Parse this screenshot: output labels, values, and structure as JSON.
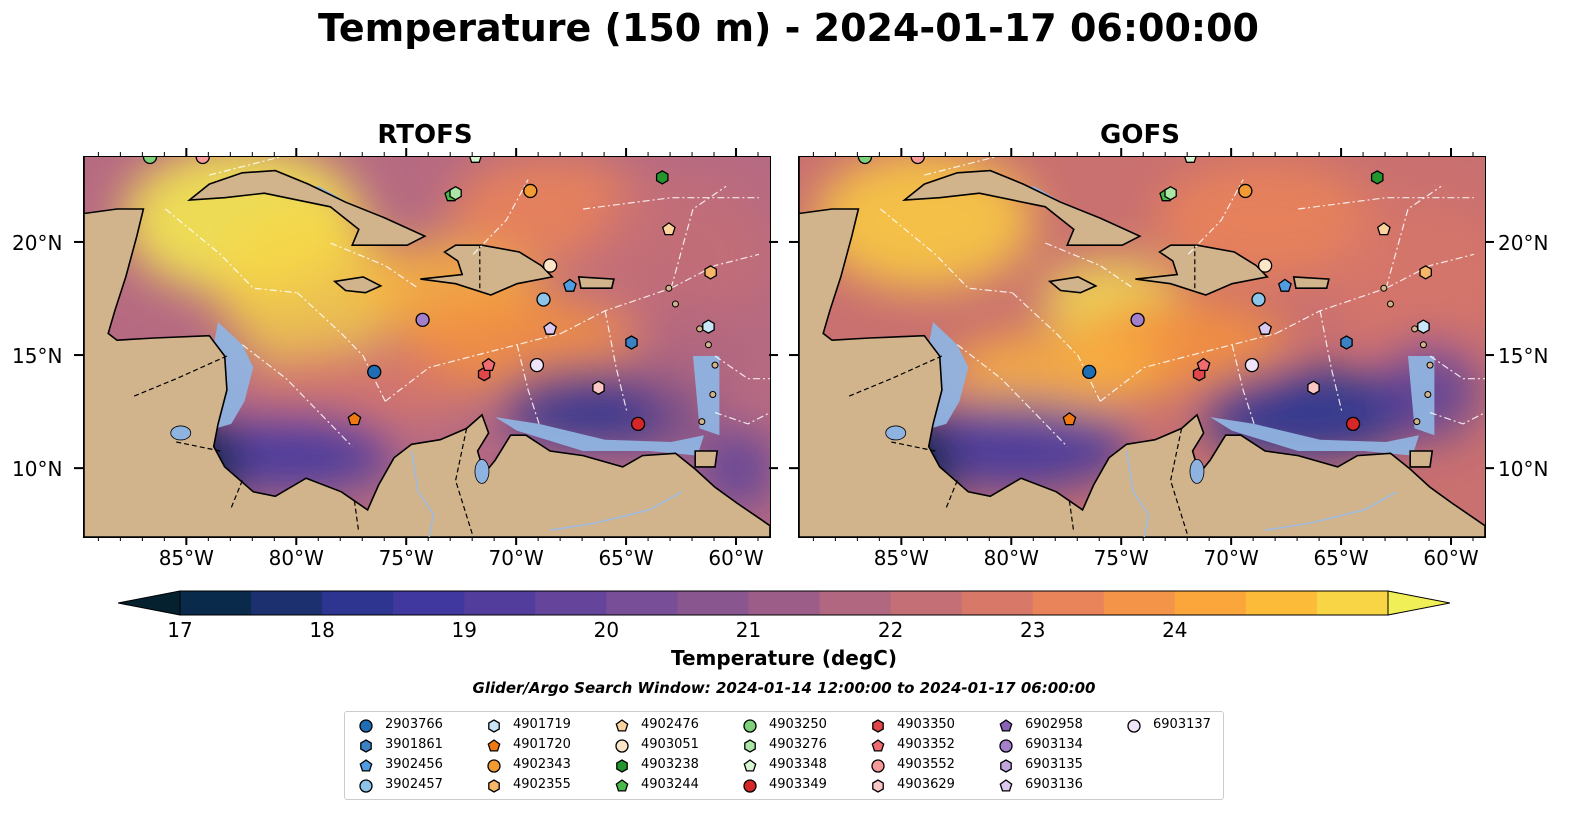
{
  "title": "Temperature (150 m) - 2024-01-17 06:00:00",
  "panels": [
    {
      "title": "RTOFS"
    },
    {
      "title": "GOFS"
    }
  ],
  "axes": {
    "lat_labels": [
      "20°N",
      "15°N",
      "10°N"
    ],
    "lon_labels": [
      "85°W",
      "80°W",
      "75°W",
      "70°W",
      "65°W",
      "60°W"
    ],
    "lat_values": [
      20,
      15,
      10
    ],
    "lon_values": [
      -85,
      -80,
      -75,
      -70,
      -65,
      -60
    ],
    "lon_range": [
      -89.7,
      -58.5
    ],
    "lat_range": [
      7,
      23.8
    ]
  },
  "colorbar": {
    "label": "Temperature (degC)",
    "ticks": [
      "17",
      "18",
      "19",
      "20",
      "21",
      "22",
      "23",
      "24"
    ],
    "range": [
      16.75,
      24.5
    ],
    "colors": [
      "#05202f",
      "#0a2a4c",
      "#1c2f6e",
      "#2d3590",
      "#40389e",
      "#533d9c",
      "#65459b",
      "#774e97",
      "#8a5690",
      "#9c5e88",
      "#b0677f",
      "#c46e75",
      "#d87869",
      "#e9835a",
      "#f49449",
      "#fba63b",
      "#fdbb3a",
      "#f8d545",
      "#f0ef58"
    ]
  },
  "search_window": "Glider/Argo Search Window: 2024-01-14 12:00:00 to 2024-01-17 06:00:00",
  "legend": [
    {
      "id": "2903766",
      "shape": "circle",
      "color": "#1f6db5"
    },
    {
      "id": "3901861",
      "shape": "hexagon",
      "color": "#3b82c4"
    },
    {
      "id": "3902456",
      "shape": "pentagon",
      "color": "#4f9de0"
    },
    {
      "id": "3902457",
      "shape": "circle",
      "color": "#8cc4ea"
    },
    {
      "id": "4901719",
      "shape": "hexagon",
      "color": "#c8e6f7"
    },
    {
      "id": "4901720",
      "shape": "pentagon",
      "color": "#f07a12"
    },
    {
      "id": "4902343",
      "shape": "circle",
      "color": "#f39b33"
    },
    {
      "id": "4902355",
      "shape": "hexagon",
      "color": "#f8b768"
    },
    {
      "id": "4902476",
      "shape": "pentagon",
      "color": "#fcd29e"
    },
    {
      "id": "4903051",
      "shape": "circle",
      "color": "#fde5c8"
    },
    {
      "id": "4903238",
      "shape": "hexagon",
      "color": "#23962e"
    },
    {
      "id": "4903244",
      "shape": "pentagon",
      "color": "#4bb84a"
    },
    {
      "id": "4903250",
      "shape": "circle",
      "color": "#7cd17a"
    },
    {
      "id": "4903276",
      "shape": "hexagon",
      "color": "#abe6a6"
    },
    {
      "id": "4903348",
      "shape": "pentagon",
      "color": "#d8f5d2"
    },
    {
      "id": "4903349",
      "shape": "circle",
      "color": "#d62728"
    },
    {
      "id": "4903350",
      "shape": "hexagon",
      "color": "#e0474a"
    },
    {
      "id": "4903352",
      "shape": "pentagon",
      "color": "#ef6d70"
    },
    {
      "id": "4903552",
      "shape": "circle",
      "color": "#f6999a"
    },
    {
      "id": "4903629",
      "shape": "hexagon",
      "color": "#fbc6c4"
    },
    {
      "id": "6902958",
      "shape": "pentagon",
      "color": "#8a63b8"
    },
    {
      "id": "6903134",
      "shape": "circle",
      "color": "#a47fcb"
    },
    {
      "id": "6903135",
      "shape": "hexagon",
      "color": "#c3a6e0"
    },
    {
      "id": "6903136",
      "shape": "pentagon",
      "color": "#dcc9f0"
    },
    {
      "id": "6903137",
      "shape": "circle",
      "color": "#f0e4fa"
    }
  ],
  "floats": [
    {
      "id": "2903766",
      "lon": -76.5,
      "lat": 14.3
    },
    {
      "id": "3901861",
      "lon": -64.8,
      "lat": 15.6
    },
    {
      "id": "3902456",
      "lon": -67.6,
      "lat": 18.1
    },
    {
      "id": "3902457",
      "lon": -68.8,
      "lat": 17.5
    },
    {
      "id": "4901719",
      "lon": -61.3,
      "lat": 16.3
    },
    {
      "id": "4901720",
      "lon": -77.4,
      "lat": 12.2
    },
    {
      "id": "4902343",
      "lon": -69.4,
      "lat": 22.3
    },
    {
      "id": "4902355",
      "lon": -61.2,
      "lat": 18.7
    },
    {
      "id": "4902476",
      "lon": -63.1,
      "lat": 20.6
    },
    {
      "id": "4903051",
      "lon": -68.5,
      "lat": 19.0
    },
    {
      "id": "4903238",
      "lon": -63.4,
      "lat": 22.9
    },
    {
      "id": "4903244",
      "lon": -73.0,
      "lat": 22.1
    },
    {
      "id": "4903250",
      "lon": -86.7,
      "lat": 23.8
    },
    {
      "id": "4903276",
      "lon": -72.8,
      "lat": 22.2
    },
    {
      "id": "4903348",
      "lon": -71.9,
      "lat": 23.8
    },
    {
      "id": "4903349",
      "lon": -64.5,
      "lat": 12.0
    },
    {
      "id": "4903350",
      "lon": -71.5,
      "lat": 14.2
    },
    {
      "id": "4903352",
      "lon": -71.3,
      "lat": 14.6
    },
    {
      "id": "4903552",
      "lon": -84.3,
      "lat": 23.8
    },
    {
      "id": "4903629",
      "lon": -66.3,
      "lat": 13.6
    },
    {
      "id": "6903134",
      "lon": -74.3,
      "lat": 16.6
    },
    {
      "id": "6903136",
      "lon": -68.5,
      "lat": 16.2
    },
    {
      "id": "6903137",
      "lon": -69.1,
      "lat": 14.6
    }
  ]
}
